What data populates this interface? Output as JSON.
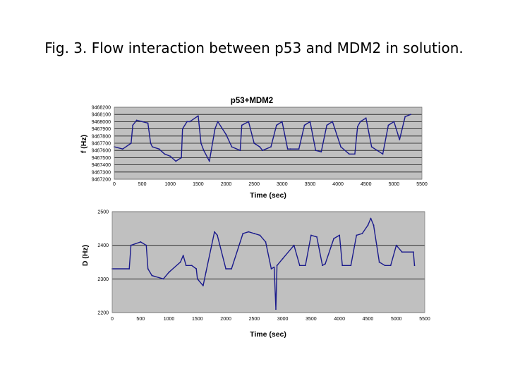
{
  "page_title": "Fig. 3. Flow interaction between p53 and MDM2 in solution.",
  "colors": {
    "plot_bg": "#c0c0c0",
    "series": "#1a1a8c",
    "grid": "#1a1a1a"
  },
  "chart_data": [
    {
      "type": "line",
      "title": "p53+MDM2",
      "xlabel": "Time (sec)",
      "ylabel": "f (Hz)",
      "xlim": [
        0,
        5500
      ],
      "ylim": [
        9467200,
        9468200
      ],
      "xticks": [
        "0",
        "500",
        "1000",
        "1500",
        "2000",
        "2500",
        "3000",
        "3500",
        "4000",
        "4500",
        "5000",
        "5500"
      ],
      "yticks": [
        "9467200",
        "9467300",
        "9467400",
        "9467500",
        "9467600",
        "9467700",
        "9467800",
        "9467900",
        "9468000",
        "9468100",
        "9468200"
      ],
      "grid": "horizontal",
      "series": [
        {
          "name": "f",
          "x": [
            0,
            150,
            300,
            330,
            400,
            600,
            650,
            680,
            800,
            900,
            1000,
            1100,
            1200,
            1220,
            1300,
            1350,
            1500,
            1550,
            1600,
            1700,
            1800,
            1850,
            2000,
            2100,
            2250,
            2280,
            2400,
            2500,
            2600,
            2650,
            2800,
            2900,
            3000,
            3100,
            3150,
            3300,
            3400,
            3500,
            3600,
            3700,
            3800,
            3900,
            4050,
            4200,
            4300,
            4350,
            4400,
            4500,
            4600,
            4700,
            4800,
            4900,
            5000,
            5100,
            5200,
            5300
          ],
          "y": [
            9467650,
            9467620,
            9467700,
            9467950,
            9468020,
            9467980,
            9467700,
            9467650,
            9467620,
            9467550,
            9467520,
            9467450,
            9467500,
            9467900,
            9468000,
            9468000,
            9468080,
            9467700,
            9467600,
            9467450,
            9467900,
            9468000,
            9467820,
            9467650,
            9467600,
            9467950,
            9468000,
            9467700,
            9467650,
            9467600,
            9467650,
            9467950,
            9468000,
            9467620,
            9467620,
            9467620,
            9467950,
            9468000,
            9467600,
            9467580,
            9467950,
            9468000,
            9467650,
            9467550,
            9467550,
            9467930,
            9468000,
            9468050,
            9467650,
            9467600,
            9467550,
            9467950,
            9468000,
            9467750,
            9468070,
            9468100
          ]
        }
      ]
    },
    {
      "type": "line",
      "title": "",
      "xlabel": "Time (sec)",
      "ylabel": "D (Hz)",
      "xlim": [
        0,
        5500
      ],
      "ylim": [
        2200,
        2500
      ],
      "xticks": [
        "0",
        "500",
        "1000",
        "1500",
        "2000",
        "2500",
        "3000",
        "3500",
        "4000",
        "4500",
        "5000",
        "5500"
      ],
      "yticks": [
        "2200",
        "2300",
        "2400",
        "2500"
      ],
      "grid": "horizontal",
      "series": [
        {
          "name": "D",
          "x": [
            0,
            300,
            330,
            500,
            600,
            630,
            700,
            900,
            1000,
            1200,
            1250,
            1300,
            1400,
            1480,
            1500,
            1600,
            1650,
            1800,
            1850,
            2000,
            2100,
            2300,
            2400,
            2500,
            2600,
            2700,
            2800,
            2850,
            2880,
            2900,
            3000,
            3200,
            3300,
            3400,
            3500,
            3600,
            3700,
            3750,
            3900,
            4000,
            4050,
            4200,
            4300,
            4400,
            4500,
            4550,
            4600,
            4700,
            4800,
            4900,
            5000,
            5100,
            5300,
            5320
          ],
          "y": [
            2330,
            2330,
            2400,
            2410,
            2400,
            2330,
            2310,
            2300,
            2320,
            2350,
            2370,
            2340,
            2340,
            2330,
            2300,
            2280,
            2320,
            2440,
            2430,
            2330,
            2330,
            2435,
            2440,
            2435,
            2430,
            2410,
            2330,
            2335,
            2210,
            2340,
            2360,
            2400,
            2340,
            2340,
            2430,
            2425,
            2340,
            2345,
            2420,
            2430,
            2340,
            2340,
            2430,
            2435,
            2460,
            2480,
            2460,
            2350,
            2340,
            2340,
            2400,
            2380,
            2380,
            2340
          ]
        }
      ]
    }
  ]
}
